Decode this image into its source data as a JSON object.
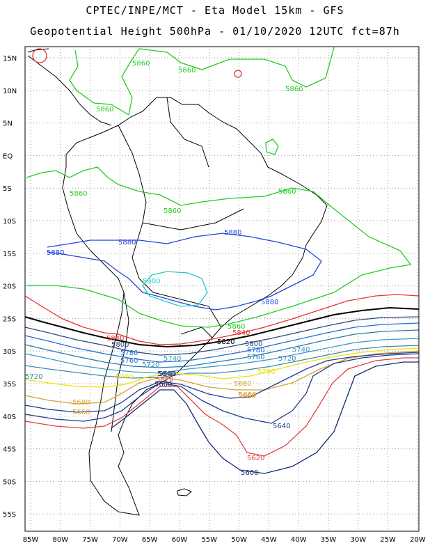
{
  "title": {
    "line1": "CPTEC/INPE/MCT  -  Eta Model 15km - GFS",
    "line2": "Geopotential Height 500hPa - 01/10/2020 12UTC fct=87h"
  },
  "axes": {
    "lat_labels": [
      "15N",
      "10N",
      "5N",
      "EQ",
      "5S",
      "10S",
      "15S",
      "20S",
      "25S",
      "30S",
      "35S",
      "40S",
      "45S",
      "50S",
      "55S"
    ],
    "lon_labels": [
      "85W",
      "80W",
      "75W",
      "70W",
      "65W",
      "60W",
      "55W",
      "50W",
      "45W",
      "40W",
      "35W",
      "30W",
      "25W",
      "20W"
    ]
  },
  "colors": {
    "c5900": "#1ec8c8",
    "c5880": "#2244dd",
    "c5860": "#22cc22",
    "c5840": "#e83030",
    "c5820": "#000000",
    "c5800": "#2a4a7a",
    "c5780": "#1e6ed8",
    "c5760": "#2a78b8",
    "c5740": "#3a9ac8",
    "c5720": "#3a8ab0",
    "c5700": "#f0e000",
    "c5680": "#d8a030",
    "c5640": "#203a90",
    "c5620": "#e04040",
    "c5600": "#102a70",
    "coast": "#000000"
  },
  "contour_labels": {
    "l5860a": "5860",
    "l5860b": "5860",
    "l5860c": "5860",
    "l5860d": "5860",
    "l5860e": "5860",
    "l5860f": "5860",
    "l5860g": "5860",
    "l5860h": "5860",
    "l5880a": "5880",
    "l5880b": "5880",
    "l5880c": "5880",
    "l5880d": "5880",
    "l5900": "5900",
    "l5840a": "5840",
    "l5840b": "5840",
    "l5820a": "5820",
    "l5820b": "5820",
    "l5800a": "5800",
    "l5800b": "5800",
    "l5780a": "5780",
    "l5780b": "5780",
    "l5760a": "5760",
    "l5760b": "5760",
    "l5740a": "5740",
    "l5740b": "5740",
    "l5720a": "5720",
    "l5720b": "5720",
    "l5720c": "5720",
    "l5700a": "5700",
    "l5700b": "5700",
    "l5680a": "5680",
    "l5680b": "5680",
    "l5680c": "5680",
    "l5660a": "5660",
    "l5660b": "5660",
    "l5640a": "5640",
    "l5640b": "5640",
    "l5640c": "5640",
    "l5620a": "5620",
    "l5620b": "5620",
    "l5600a": "5600",
    "l5600b": "5600"
  }
}
